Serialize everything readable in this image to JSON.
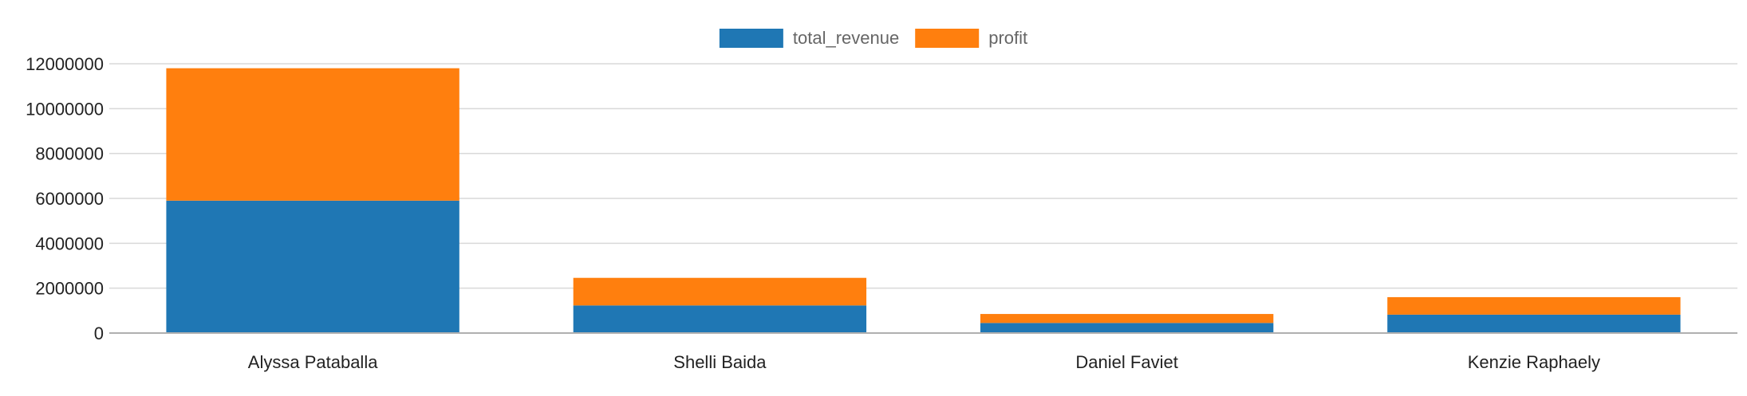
{
  "chart_data": {
    "type": "bar",
    "stacked": true,
    "categories": [
      "Alyssa Pataballa",
      "Shelli Baida",
      "Daniel Faviet",
      "Kenzie Raphaely"
    ],
    "series": [
      {
        "name": "total_revenue",
        "color": "#1f77b4",
        "values": [
          5900000,
          1230000,
          450000,
          820000
        ]
      },
      {
        "name": "profit",
        "color": "#ff7f0e",
        "values": [
          5900000,
          1230000,
          400000,
          780000
        ]
      }
    ],
    "ylim": [
      0,
      12000000
    ],
    "yticks": [
      "0",
      "2000000",
      "4000000",
      "6000000",
      "8000000",
      "10000000",
      "12000000"
    ],
    "grid": true,
    "legend": "top-center",
    "xlabel": "",
    "ylabel": "",
    "title": ""
  }
}
